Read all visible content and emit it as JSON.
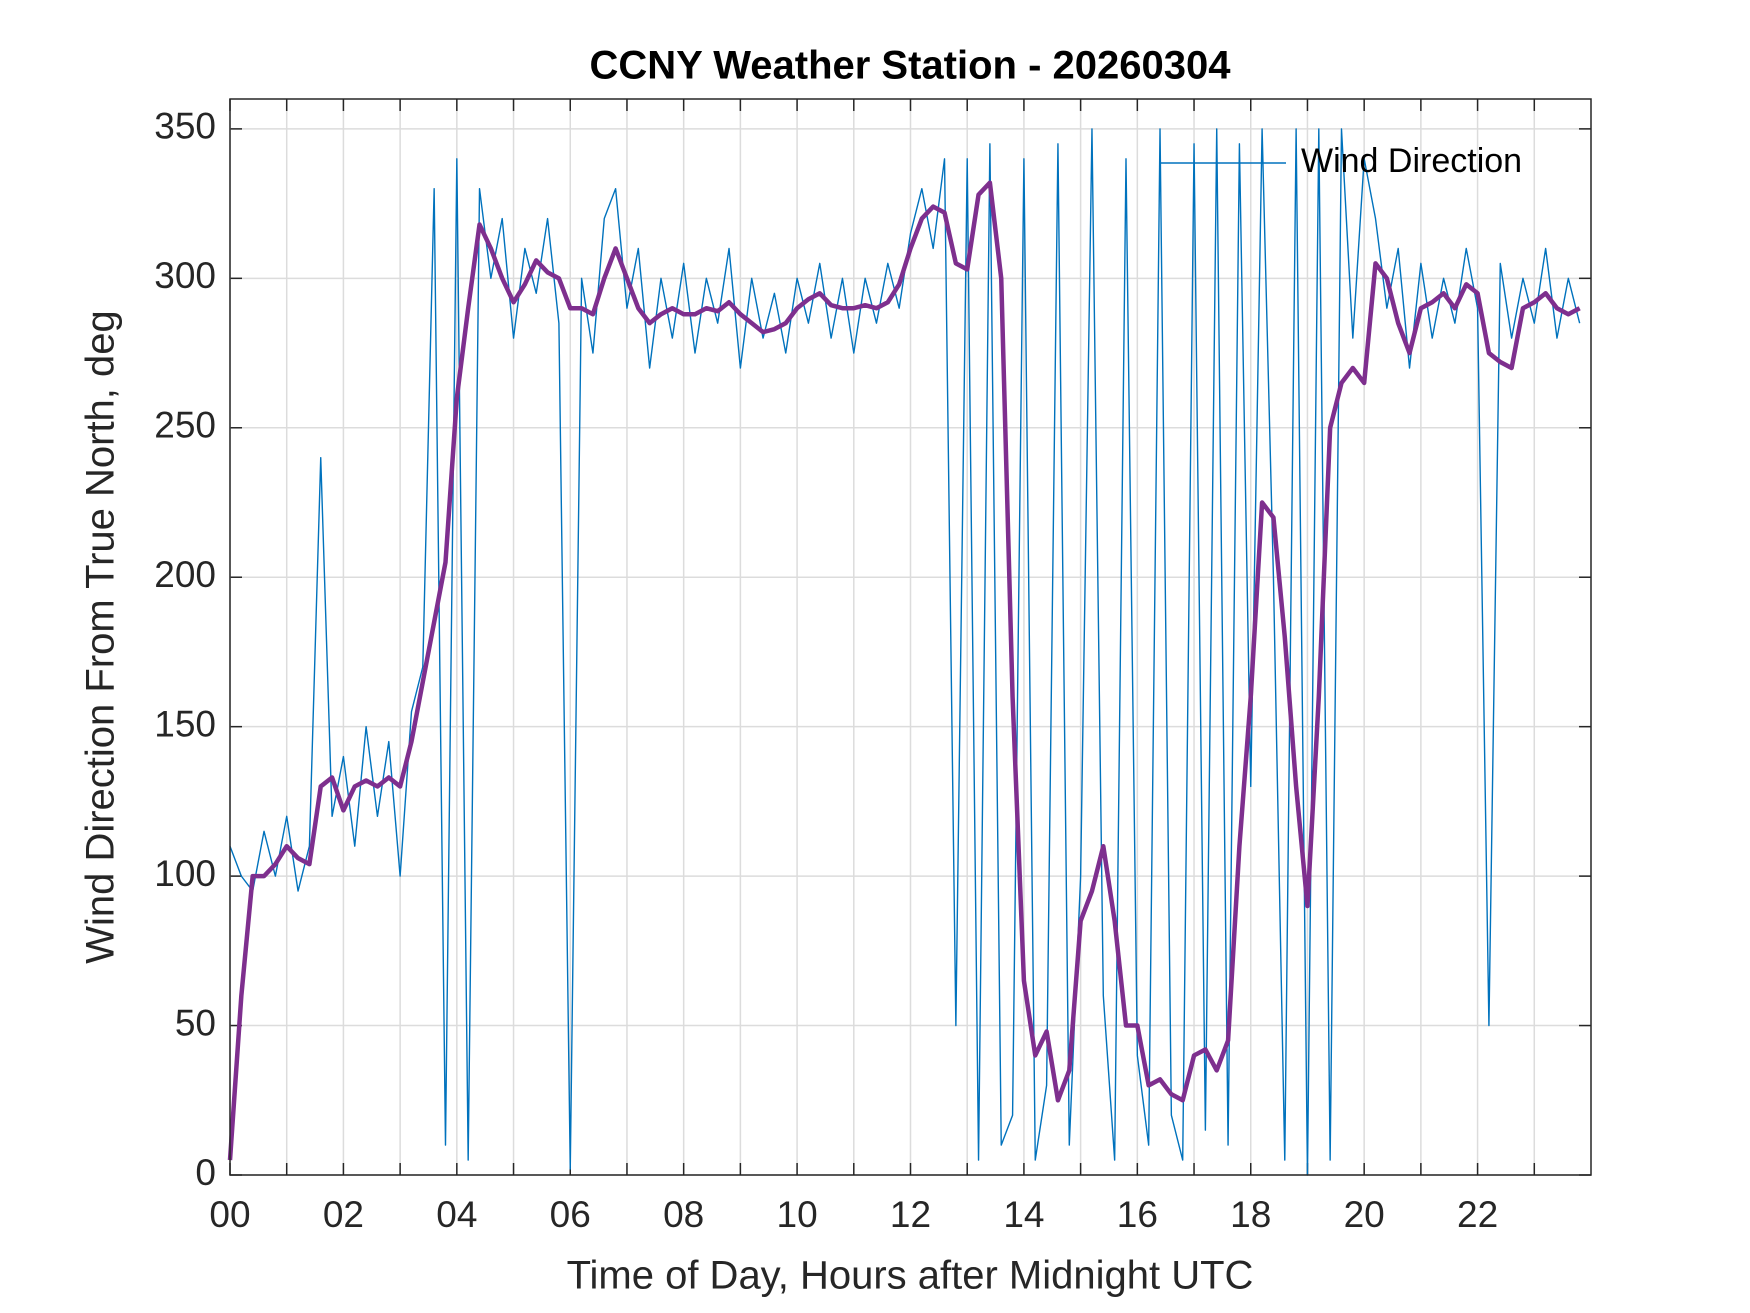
{
  "chart_data": {
    "type": "line",
    "title": "CCNY Weather Station - 20260304",
    "xlabel": "Time of Day, Hours after Midnight UTC",
    "ylabel": "Wind Direction From True North, deg",
    "xlim": [
      0,
      24
    ],
    "ylim": [
      0,
      360
    ],
    "xticks": [
      {
        "value": 0,
        "label": "00"
      },
      {
        "value": 2,
        "label": "02"
      },
      {
        "value": 4,
        "label": "04"
      },
      {
        "value": 6,
        "label": "06"
      },
      {
        "value": 8,
        "label": "08"
      },
      {
        "value": 10,
        "label": "10"
      },
      {
        "value": 12,
        "label": "12"
      },
      {
        "value": 14,
        "label": "14"
      },
      {
        "value": 16,
        "label": "16"
      },
      {
        "value": 18,
        "label": "18"
      },
      {
        "value": 20,
        "label": "20"
      },
      {
        "value": 22,
        "label": "22"
      }
    ],
    "xminorticks": [
      1,
      3,
      5,
      7,
      9,
      11,
      13,
      15,
      17,
      19,
      21,
      23
    ],
    "yticks": [
      0,
      50,
      100,
      150,
      200,
      250,
      300,
      350
    ],
    "grid": true,
    "legend": "northeast",
    "x": [
      0,
      0.2,
      0.4,
      0.6,
      0.8,
      1,
      1.2,
      1.4,
      1.6,
      1.8,
      2,
      2.2,
      2.4,
      2.6,
      2.8,
      3,
      3.2,
      3.4,
      3.6,
      3.8,
      4,
      4.2,
      4.4,
      4.6,
      4.8,
      5,
      5.2,
      5.4,
      5.6,
      5.8,
      6,
      6.2,
      6.4,
      6.6,
      6.8,
      7,
      7.2,
      7.4,
      7.6,
      7.8,
      8,
      8.2,
      8.4,
      8.6,
      8.8,
      9,
      9.2,
      9.4,
      9.6,
      9.8,
      10,
      10.2,
      10.4,
      10.6,
      10.8,
      11,
      11.2,
      11.4,
      11.6,
      11.8,
      12,
      12.2,
      12.4,
      12.6,
      12.8,
      13,
      13.2,
      13.4,
      13.6,
      13.8,
      14,
      14.2,
      14.4,
      14.6,
      14.8,
      15,
      15.2,
      15.4,
      15.6,
      15.8,
      16,
      16.2,
      16.4,
      16.6,
      16.8,
      17,
      17.2,
      17.4,
      17.6,
      17.8,
      18,
      18.2,
      18.4,
      18.6,
      18.8,
      19,
      19.2,
      19.4,
      19.6,
      19.8,
      20,
      20.2,
      20.4,
      20.6,
      20.8,
      21,
      21.2,
      21.4,
      21.6,
      21.8,
      22,
      22.2,
      22.4,
      22.6,
      22.8,
      23,
      23.2,
      23.4,
      23.6,
      23.8
    ],
    "series": [
      {
        "name": "Wind Direction",
        "color": "#0072bd",
        "width": 1.4,
        "values": [
          110,
          100,
          95,
          115,
          100,
          120,
          95,
          110,
          240,
          120,
          140,
          110,
          150,
          120,
          145,
          100,
          155,
          170,
          330,
          10,
          340,
          5,
          330,
          300,
          320,
          280,
          310,
          295,
          320,
          285,
          2,
          300,
          275,
          320,
          330,
          290,
          310,
          270,
          300,
          280,
          305,
          275,
          300,
          285,
          310,
          270,
          300,
          280,
          295,
          275,
          300,
          285,
          305,
          280,
          300,
          275,
          300,
          285,
          305,
          290,
          315,
          330,
          310,
          340,
          50,
          340,
          5,
          345,
          10,
          20,
          340,
          5,
          30,
          345,
          10,
          100,
          350,
          60,
          5,
          340,
          40,
          10,
          350,
          20,
          5,
          345,
          15,
          350,
          10,
          345,
          130,
          350,
          200,
          5,
          350,
          0,
          350,
          5,
          350,
          280,
          340,
          320,
          290,
          310,
          270,
          305,
          280,
          300,
          285,
          310,
          290,
          50,
          305,
          280,
          300,
          285,
          310,
          280,
          300,
          285
        ]
      },
      {
        "color": "#7e2f8e",
        "width": 4.5,
        "values": [
          5,
          60,
          100,
          100,
          104,
          110,
          106,
          104,
          130,
          133,
          122,
          130,
          132,
          130,
          133,
          130,
          145,
          165,
          185,
          205,
          260,
          290,
          318,
          310,
          300,
          292,
          298,
          306,
          302,
          300,
          290,
          290,
          288,
          300,
          310,
          300,
          290,
          285,
          288,
          290,
          288,
          288,
          290,
          289,
          292,
          288,
          285,
          282,
          283,
          285,
          290,
          293,
          295,
          291,
          290,
          290,
          291,
          290,
          292,
          298,
          310,
          320,
          324,
          322,
          305,
          303,
          328,
          332,
          300,
          160,
          65,
          40,
          48,
          25,
          35,
          85,
          95,
          110,
          85,
          50,
          50,
          30,
          32,
          27,
          25,
          40,
          42,
          35,
          45,
          110,
          160,
          225,
          220,
          180,
          130,
          90,
          160,
          250,
          265,
          270,
          265,
          305,
          300,
          285,
          275,
          290,
          292,
          295,
          290,
          298,
          295,
          275,
          272,
          270,
          290,
          292,
          295,
          290,
          288,
          290
        ]
      }
    ]
  }
}
